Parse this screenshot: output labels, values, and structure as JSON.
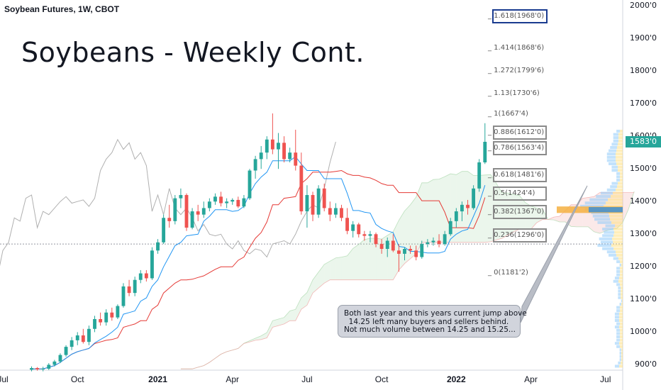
{
  "header": {
    "symbol_line": "Soybean Futures, 1W, CBOT"
  },
  "title": "Soybeans - Weekly Cont.",
  "fib_levels": [
    {
      "ratio": "1.618",
      "price": "1968'0",
      "label": "1.618(1968'0)",
      "value": 1968,
      "boxed": "blue"
    },
    {
      "ratio": "1.414",
      "price": "1868'6",
      "label": "1.414(1868'6)",
      "value": 1868.75,
      "boxed": ""
    },
    {
      "ratio": "1.272",
      "price": "1799'6",
      "label": "1.272(1799'6)",
      "value": 1799.75,
      "boxed": ""
    },
    {
      "ratio": "1.13",
      "price": "1730'6",
      "label": "1.13(1730'6)",
      "value": 1730.75,
      "boxed": ""
    },
    {
      "ratio": "1",
      "price": "1667'4",
      "label": "1(1667'4)",
      "value": 1667.5,
      "boxed": ""
    },
    {
      "ratio": "0.886",
      "price": "1612'0",
      "label": "0.886(1612'0)",
      "value": 1612,
      "boxed": "gray"
    },
    {
      "ratio": "0.786",
      "price": "1563'4",
      "label": "0.786(1563'4)",
      "value": 1563.5,
      "boxed": "gray"
    },
    {
      "ratio": "0.618",
      "price": "1481'6",
      "label": "0.618(1481'6)",
      "value": 1481.75,
      "boxed": "gray"
    },
    {
      "ratio": "0.5",
      "price": "1424'4",
      "label": "0.5(1424'4)",
      "value": 1424.5,
      "boxed": "gray"
    },
    {
      "ratio": "0.382",
      "price": "1367'0",
      "label": "0.382(1367'0)",
      "value": 1367,
      "boxed": "gray"
    },
    {
      "ratio": "0.236",
      "price": "1296'0",
      "label": "0.236(1296'0)",
      "value": 1296,
      "boxed": "gray"
    },
    {
      "ratio": "0",
      "price": "1181'2",
      "label": "0(1181'2)",
      "value": 1181.25,
      "boxed": ""
    }
  ],
  "current_price": {
    "label": "1583'0",
    "value": 1583
  },
  "note": {
    "line1": "Both last year and this years current jump above",
    "line2": "  14.25 left many buyers and sellers behind.",
    "line3": "Not much volume between 14.25 and 15.25..."
  },
  "colors": {
    "up": "#26a69a",
    "down": "#ef5350",
    "conversion": "#2196f3",
    "base": "#e53935",
    "lagging": "#b0b0b0",
    "cloud_up": "#a5d6a7",
    "cloud_down": "#ef9a9a",
    "note_bg": "#d1d4dc",
    "fib_box_blue": "#1a3b8f",
    "fib_box_gray": "#8a8a8a"
  },
  "chart_data": {
    "type": "candlestick",
    "title": "Soybeans - Weekly Cont.",
    "symbol": "Soybean Futures, 1W, CBOT",
    "ylim": [
      880,
      2010
    ],
    "y_ticks": [
      "2000'0",
      "1900'0",
      "1800'0",
      "1700'0",
      "1600'0",
      "1500'0",
      "1400'0",
      "1300'0",
      "1200'0",
      "1100'0",
      "1000'0",
      "900'0"
    ],
    "y_tick_values": [
      2000,
      1900,
      1800,
      1700,
      1600,
      1500,
      1400,
      1300,
      1200,
      1100,
      1000,
      900
    ],
    "x_ticks": [
      {
        "label": "Jul",
        "bold": false,
        "week": -5
      },
      {
        "label": "Oct",
        "bold": false,
        "week": 8
      },
      {
        "label": "2021",
        "bold": true,
        "week": 22
      },
      {
        "label": "Apr",
        "bold": false,
        "week": 35
      },
      {
        "label": "Jul",
        "bold": false,
        "week": 48
      },
      {
        "label": "Oct",
        "bold": false,
        "week": 61
      },
      {
        "label": "2022",
        "bold": true,
        "week": 74
      },
      {
        "label": "Apr",
        "bold": false,
        "week": 87
      },
      {
        "label": "Jul",
        "bold": false,
        "week": 100
      }
    ],
    "week_range": [
      -5.5,
      103
    ],
    "candles": [
      [
        885,
        895,
        880,
        890
      ],
      [
        890,
        893,
        882,
        886
      ],
      [
        886,
        894,
        880,
        888
      ],
      [
        888,
        905,
        884,
        900
      ],
      [
        900,
        915,
        895,
        910
      ],
      [
        910,
        935,
        905,
        930
      ],
      [
        930,
        960,
        925,
        955
      ],
      [
        955,
        985,
        945,
        975
      ],
      [
        975,
        1000,
        960,
        990
      ],
      [
        990,
        1010,
        965,
        970
      ],
      [
        970,
        1020,
        960,
        1010
      ],
      [
        1010,
        1050,
        1000,
        1040
      ],
      [
        1040,
        1060,
        1020,
        1030
      ],
      [
        1030,
        1070,
        1020,
        1060
      ],
      [
        1060,
        1075,
        1035,
        1045
      ],
      [
        1045,
        1085,
        1040,
        1080
      ],
      [
        1080,
        1150,
        1075,
        1140
      ],
      [
        1140,
        1160,
        1110,
        1120
      ],
      [
        1120,
        1170,
        1110,
        1160
      ],
      [
        1160,
        1190,
        1150,
        1180
      ],
      [
        1180,
        1190,
        1155,
        1165
      ],
      [
        1165,
        1260,
        1160,
        1250
      ],
      [
        1250,
        1285,
        1240,
        1275
      ],
      [
        1275,
        1360,
        1270,
        1350
      ],
      [
        1350,
        1390,
        1320,
        1340
      ],
      [
        1340,
        1420,
        1330,
        1410
      ],
      [
        1410,
        1440,
        1380,
        1420
      ],
      [
        1420,
        1425,
        1310,
        1320
      ],
      [
        1320,
        1380,
        1315,
        1370
      ],
      [
        1370,
        1390,
        1340,
        1360
      ],
      [
        1360,
        1400,
        1350,
        1380
      ],
      [
        1380,
        1410,
        1370,
        1400
      ],
      [
        1400,
        1425,
        1390,
        1415
      ],
      [
        1415,
        1430,
        1385,
        1395
      ],
      [
        1395,
        1410,
        1380,
        1400
      ],
      [
        1400,
        1410,
        1390,
        1405
      ],
      [
        1405,
        1415,
        1380,
        1385
      ],
      [
        1385,
        1420,
        1380,
        1410
      ],
      [
        1410,
        1500,
        1405,
        1495
      ],
      [
        1495,
        1540,
        1470,
        1530
      ],
      [
        1530,
        1570,
        1500,
        1550
      ],
      [
        1550,
        1600,
        1530,
        1590
      ],
      [
        1590,
        1670,
        1545,
        1560
      ],
      [
        1560,
        1610,
        1500,
        1580
      ],
      [
        1580,
        1600,
        1520,
        1530
      ],
      [
        1530,
        1565,
        1520,
        1550
      ],
      [
        1550,
        1620,
        1495,
        1510
      ],
      [
        1510,
        1550,
        1360,
        1370
      ],
      [
        1370,
        1450,
        1320,
        1420
      ],
      [
        1420,
        1430,
        1340,
        1360
      ],
      [
        1360,
        1450,
        1350,
        1440
      ],
      [
        1440,
        1455,
        1370,
        1380
      ],
      [
        1380,
        1400,
        1340,
        1360
      ],
      [
        1360,
        1395,
        1350,
        1380
      ],
      [
        1380,
        1390,
        1340,
        1350
      ],
      [
        1350,
        1380,
        1300,
        1310
      ],
      [
        1310,
        1340,
        1290,
        1330
      ],
      [
        1330,
        1335,
        1290,
        1300
      ],
      [
        1300,
        1310,
        1280,
        1295
      ],
      [
        1295,
        1310,
        1275,
        1300
      ],
      [
        1300,
        1305,
        1260,
        1270
      ],
      [
        1270,
        1285,
        1240,
        1255
      ],
      [
        1255,
        1290,
        1230,
        1280
      ],
      [
        1280,
        1300,
        1245,
        1250
      ],
      [
        1250,
        1270,
        1185,
        1240
      ],
      [
        1240,
        1260,
        1220,
        1255
      ],
      [
        1255,
        1265,
        1240,
        1250
      ],
      [
        1250,
        1265,
        1220,
        1230
      ],
      [
        1230,
        1280,
        1225,
        1270
      ],
      [
        1270,
        1285,
        1260,
        1275
      ],
      [
        1275,
        1290,
        1265,
        1280
      ],
      [
        1280,
        1300,
        1260,
        1270
      ],
      [
        1270,
        1310,
        1265,
        1300
      ],
      [
        1300,
        1350,
        1295,
        1340
      ],
      [
        1340,
        1380,
        1320,
        1370
      ],
      [
        1370,
        1400,
        1340,
        1390
      ],
      [
        1390,
        1405,
        1360,
        1380
      ],
      [
        1380,
        1450,
        1375,
        1440
      ],
      [
        1440,
        1530,
        1430,
        1520
      ],
      [
        1520,
        1640,
        1515,
        1583
      ]
    ]
  }
}
